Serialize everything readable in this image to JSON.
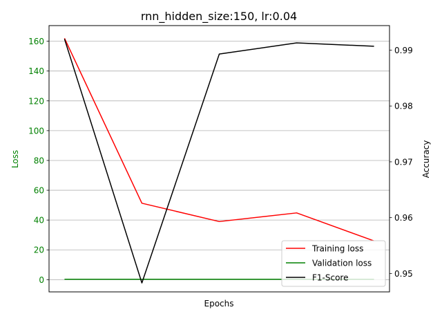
{
  "chart_data": {
    "type": "line",
    "title": "rnn_hidden_size:150, lr:0.04",
    "xlabel": "Epochs",
    "ylabel_left": "Loss",
    "ylabel_right": "Accuracy",
    "x": [
      1,
      2,
      3,
      4,
      5
    ],
    "xticks_visible": false,
    "ylim_left": [
      -8.2,
      170.5
    ],
    "ylim_right": [
      0.9467,
      0.9944
    ],
    "yticks_left": [
      "0",
      "20",
      "40",
      "60",
      "80",
      "100",
      "120",
      "140",
      "160"
    ],
    "yticks_left_values": [
      0,
      20,
      40,
      60,
      80,
      100,
      120,
      140,
      160
    ],
    "yticks_right": [
      "0.95",
      "0.96",
      "0.97",
      "0.98",
      "0.99"
    ],
    "yticks_right_values": [
      0.95,
      0.96,
      0.97,
      0.98,
      0.99
    ],
    "grid": "horizontal (left axis)",
    "legend_position": "lower right",
    "series": [
      {
        "name": "Training loss",
        "axis": "left",
        "color": "#ff0000",
        "values": [
          162,
          51.3,
          39,
          44.8,
          26
        ]
      },
      {
        "name": "Validation loss",
        "axis": "left",
        "color": "#008000",
        "values": [
          0.3,
          0.3,
          0.3,
          0.3,
          0.3
        ]
      },
      {
        "name": "F1-Score",
        "axis": "right",
        "color": "#000000",
        "values": [
          0.992,
          0.9483,
          0.9893,
          0.9913,
          0.9907
        ]
      }
    ],
    "colors": {
      "left_axis": "#008000",
      "right_axis": "#000000",
      "grid": "#b0b0b0"
    }
  }
}
